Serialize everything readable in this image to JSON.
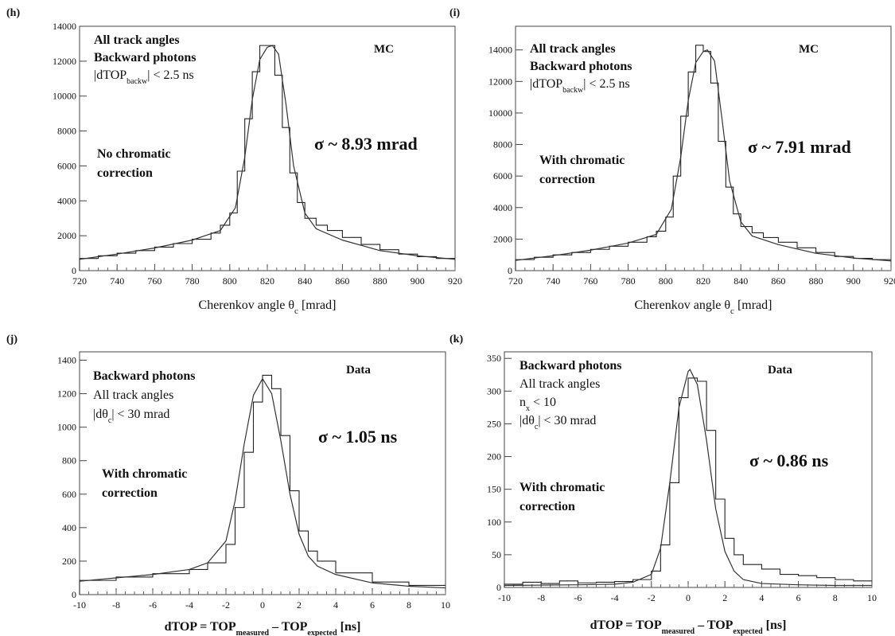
{
  "chart_data": [
    {
      "id": "h",
      "panel_label": "(h)",
      "type": "line",
      "shape": "cherenkov",
      "xlim": [
        720,
        920
      ],
      "ylim": [
        0,
        14000
      ],
      "xticks": [
        720,
        740,
        760,
        780,
        800,
        820,
        840,
        860,
        880,
        900,
        920
      ],
      "yticks": [
        0,
        2000,
        4000,
        6000,
        8000,
        10000,
        12000,
        14000
      ],
      "xlabel": {
        "main": "Cherenkov angle θ",
        "sub": "c",
        "tail": " [mrad]"
      },
      "annotations": {
        "lines": [
          {
            "text": "All track angles",
            "style": "bold"
          },
          {
            "text": "Backward photons",
            "style": "bold"
          },
          {
            "main": "|dTOP",
            "sub": "backw",
            "tail": "| < 2.5 ns",
            "style": "reg"
          }
        ],
        "note": [
          "No chromatic",
          "correction"
        ],
        "tag": "MC",
        "sigma": "σ ~ 8.93 mrad"
      },
      "peak": {
        "x": 822.7,
        "y": 12900
      },
      "series": [
        {
          "kind": "histogram",
          "x": [
            720,
            730,
            740,
            750,
            760,
            770,
            780,
            790,
            795,
            800,
            804,
            808,
            812,
            816,
            820,
            824,
            828,
            832,
            836,
            840,
            846,
            852,
            860,
            870,
            880,
            890,
            900,
            910,
            920
          ],
          "y": [
            700,
            850,
            1000,
            1150,
            1350,
            1550,
            1800,
            2150,
            2600,
            3300,
            5700,
            8700,
            11400,
            12900,
            12900,
            11200,
            8200,
            5600,
            3900,
            3000,
            2600,
            2300,
            1900,
            1500,
            1200,
            950,
            800,
            700
          ]
        },
        {
          "kind": "fit",
          "x": [
            720,
            740,
            760,
            780,
            795,
            803,
            808,
            812,
            816,
            820,
            822.7,
            826,
            830,
            834,
            840,
            846,
            860,
            880,
            900,
            920
          ],
          "y": [
            650,
            950,
            1300,
            1750,
            2300,
            3600,
            6500,
            9800,
            12100,
            12800,
            12900,
            12400,
            9500,
            6000,
            3300,
            2400,
            1750,
            1150,
            850,
            650
          ]
        }
      ]
    },
    {
      "id": "i",
      "panel_label": "(i)",
      "type": "line",
      "shape": "cherenkov",
      "xlim": [
        720,
        920
      ],
      "ylim": [
        0,
        15500
      ],
      "xticks": [
        720,
        740,
        760,
        780,
        800,
        820,
        840,
        860,
        880,
        900,
        920
      ],
      "yticks": [
        0,
        2000,
        4000,
        6000,
        8000,
        10000,
        12000,
        14000
      ],
      "xlabel": {
        "main": "Cherenkov angle θ",
        "sub": "c",
        "tail": " [mrad]"
      },
      "annotations": {
        "lines": [
          {
            "text": "All track angles",
            "style": "bold"
          },
          {
            "text": "Backward photons",
            "style": "bold"
          },
          {
            "main": "|dTOP",
            "sub": "backw",
            "tail": "| < 2.5 ns",
            "style": "reg"
          }
        ],
        "note": [
          "With chromatic",
          "correction"
        ],
        "tag": "MC",
        "sigma": "σ ~ 7.91 mrad"
      },
      "peak": {
        "x": 822.2,
        "y": 14300
      },
      "series": [
        {
          "kind": "histogram",
          "x": [
            720,
            730,
            740,
            750,
            760,
            770,
            780,
            790,
            795,
            800,
            804,
            808,
            812,
            816,
            820,
            824,
            828,
            832,
            836,
            840,
            846,
            852,
            860,
            870,
            880,
            890,
            900,
            910,
            920
          ],
          "y": [
            700,
            850,
            1000,
            1150,
            1350,
            1550,
            1800,
            2150,
            2500,
            3400,
            6000,
            9800,
            12600,
            14300,
            13900,
            11900,
            8200,
            5300,
            3600,
            2800,
            2400,
            2100,
            1800,
            1450,
            1150,
            900,
            780,
            700
          ]
        },
        {
          "kind": "fit",
          "x": [
            720,
            740,
            760,
            780,
            795,
            803,
            808,
            812,
            816,
            820,
            822.2,
            826,
            830,
            834,
            840,
            846,
            860,
            880,
            900,
            920
          ],
          "y": [
            650,
            950,
            1300,
            1750,
            2300,
            3900,
            7200,
            10800,
            13200,
            13900,
            14000,
            13300,
            9600,
            5700,
            3100,
            2200,
            1650,
            1100,
            800,
            620
          ]
        }
      ]
    },
    {
      "id": "j",
      "panel_label": "(j)",
      "type": "line",
      "shape": "dtop_wide",
      "xlim": [
        -10,
        10
      ],
      "ylim": [
        0,
        1450
      ],
      "xticks": [
        -10,
        -8,
        -6,
        -4,
        -2,
        0,
        2,
        4,
        6,
        8,
        10
      ],
      "yticks": [
        0,
        200,
        400,
        600,
        800,
        1000,
        1200,
        1400
      ],
      "xlabel": {
        "parts": [
          "dTOP = TOP",
          "measured",
          " – TOP",
          "expected",
          " [ns]"
        ]
      },
      "annotations": {
        "lines": [
          {
            "text": "Backward photons",
            "style": "bold"
          },
          {
            "text": "All track angles",
            "style": "reg"
          },
          {
            "main": "|dθ",
            "sub": "c",
            "tail": "| < 30 mrad",
            "style": "reg"
          }
        ],
        "note": [
          "With chromatic",
          "correction"
        ],
        "tag": "Data",
        "sigma": "σ ~ 1.05 ns"
      },
      "peak": {
        "x": 0,
        "y": 1310
      },
      "series": [
        {
          "kind": "histogram",
          "approx": "fine-binned",
          "x": [
            -10,
            -8,
            -6,
            -4,
            -3,
            -2,
            -1.5,
            -1,
            -0.5,
            0,
            0.5,
            1,
            1.5,
            2,
            2.5,
            3,
            4,
            6,
            8,
            10
          ],
          "y": [
            85,
            105,
            125,
            150,
            190,
            300,
            520,
            850,
            1150,
            1310,
            1230,
            950,
            620,
            380,
            260,
            200,
            130,
            75,
            55
          ]
        },
        {
          "kind": "fit",
          "x": [
            -10,
            -8,
            -6,
            -4,
            -3,
            -2,
            -1.5,
            -1,
            -0.5,
            0,
            0.5,
            1,
            1.5,
            2,
            2.5,
            3,
            4,
            6,
            8,
            10
          ],
          "y": [
            80,
            100,
            120,
            150,
            190,
            320,
            560,
            900,
            1190,
            1290,
            1200,
            920,
            600,
            360,
            230,
            170,
            120,
            70,
            50,
            40
          ]
        }
      ]
    },
    {
      "id": "k",
      "panel_label": "(k)",
      "type": "line",
      "shape": "dtop_narrow",
      "xlim": [
        -10,
        10
      ],
      "ylim": [
        0,
        360
      ],
      "xticks": [
        -10,
        -8,
        -6,
        -4,
        -2,
        0,
        2,
        4,
        6,
        8,
        10
      ],
      "yticks": [
        0,
        50,
        100,
        150,
        200,
        250,
        300,
        350
      ],
      "xlabel": {
        "parts": [
          "dTOP = TOP",
          "measured",
          " – TOP",
          "expected",
          " [ns]"
        ]
      },
      "annotations": {
        "lines": [
          {
            "text": "Backward photons",
            "style": "bold"
          },
          {
            "text": "All track angles",
            "style": "reg"
          },
          {
            "main": "n",
            "sub": "x",
            "tail": " < 10",
            "style": "reg"
          },
          {
            "main": "|dθ",
            "sub": "c",
            "tail": "| < 30 mrad",
            "style": "reg"
          }
        ],
        "note": [
          "With chromatic",
          "correction"
        ],
        "tag": "Data",
        "sigma": "σ ~ 0.86 ns"
      },
      "peak": {
        "x": 0.1,
        "y": 333
      },
      "series": [
        {
          "kind": "histogram",
          "x": [
            -10,
            -9,
            -8,
            -7,
            -6,
            -5,
            -4,
            -3,
            -2,
            -1.5,
            -1,
            -0.5,
            0,
            0.5,
            1,
            1.5,
            2,
            2.5,
            3,
            4,
            5,
            6,
            7,
            8,
            9,
            10
          ],
          "y": [
            5,
            8,
            6,
            10,
            7,
            8,
            9,
            12,
            25,
            65,
            160,
            290,
            320,
            315,
            240,
            135,
            75,
            50,
            35,
            28,
            20,
            18,
            15,
            12,
            10
          ]
        },
        {
          "kind": "fit",
          "x": [
            -10,
            -6,
            -4,
            -3,
            -2,
            -1.5,
            -1,
            -0.5,
            0,
            0.1,
            0.5,
            1,
            1.5,
            2,
            2.5,
            3,
            4,
            6,
            8,
            10
          ],
          "y": [
            3,
            4,
            5,
            8,
            20,
            60,
            160,
            275,
            330,
            333,
            310,
            225,
            120,
            55,
            25,
            12,
            6,
            4,
            3,
            3
          ]
        }
      ]
    }
  ]
}
